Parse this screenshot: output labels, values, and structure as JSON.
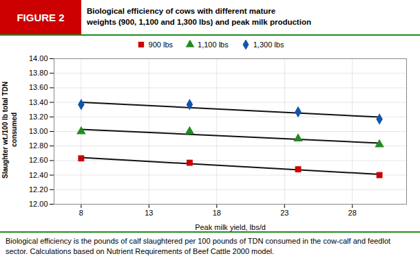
{
  "chart_data": {
    "type": "scatter",
    "title": "Biological efficiency of cows with different mature\nweights (900, 1,100 and 1,300 lbs) and peak milk production",
    "annotations": [
      "FIGURE 2",
      "Biological efficiency is the pounds of calf slaughtered per 100 pounds of TDN consumed in the cow-calf and feedlot sector. Calculations based on Nutrient Requirements of Beef Cattle 2000 model."
    ],
    "xlabel": "Peak milk yield, lbs/d",
    "ylabel": "Slaughter wt./100 lb total TDN\nconsumed",
    "x": [
      8,
      16,
      24,
      30
    ],
    "series": [
      {
        "name": "900 lbs",
        "color": "#cc0000",
        "marker": "square",
        "values": [
          12.63,
          12.57,
          12.48,
          12.4
        ]
      },
      {
        "name": "1,100 lbs",
        "color": "#228B22",
        "marker": "triangle",
        "values": [
          13.0,
          13.0,
          12.9,
          12.82
        ]
      },
      {
        "name": "1,300 lbs",
        "color": "#1155aa",
        "marker": "diamond",
        "values": [
          13.37,
          13.37,
          13.27,
          13.17
        ]
      }
    ],
    "xlim": [
      6,
      32
    ],
    "ylim": [
      12,
      14
    ],
    "xticks": [
      8,
      13,
      18,
      23,
      28
    ],
    "yticks": [
      {
        "value": 12,
        "label": "12.00"
      },
      {
        "value": 12.2,
        "label": "12.20"
      },
      {
        "value": 12.4,
        "label": "12.40"
      },
      {
        "value": 12.6,
        "label": "12.60"
      },
      {
        "value": 12.8,
        "label": "12.80"
      },
      {
        "value": 13,
        "label": "13.00"
      },
      {
        "value": 13.2,
        "label": "13.20"
      },
      {
        "value": 13.4,
        "label": "13.40"
      },
      {
        "value": 13.6,
        "label": "13.60"
      },
      {
        "value": 13.8,
        "label": "13.80"
      },
      {
        "value": 14,
        "label": "14.00"
      }
    ],
    "grid": true,
    "legend": "top"
  }
}
